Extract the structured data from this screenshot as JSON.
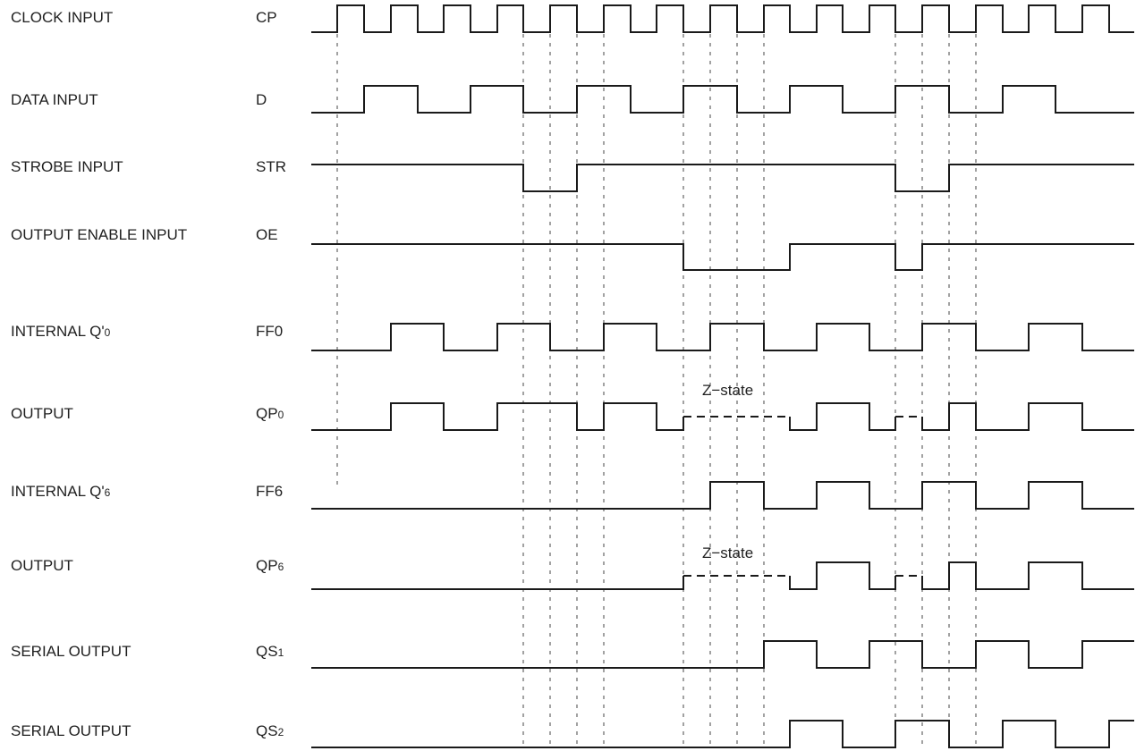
{
  "signals": [
    {
      "id": "cp",
      "name": "CLOCK INPUT",
      "sym": "CP",
      "sub": ""
    },
    {
      "id": "d",
      "name": "DATA INPUT",
      "sym": "D",
      "sub": ""
    },
    {
      "id": "str",
      "name": "STROBE INPUT",
      "sym": "STR",
      "sub": ""
    },
    {
      "id": "oe",
      "name": "OUTPUT ENABLE INPUT",
      "sym": "OE",
      "sub": ""
    },
    {
      "id": "ff0",
      "name": "INTERNAL Q'",
      "name_sub": "0",
      "sym": "FF0",
      "sub": ""
    },
    {
      "id": "qp0",
      "name": "OUTPUT",
      "sym": "QP",
      "sub": "0"
    },
    {
      "id": "ff6",
      "name": "INTERNAL Q'",
      "name_sub": "6",
      "sym": "FF6",
      "sub": ""
    },
    {
      "id": "qp6",
      "name": "OUTPUT",
      "sym": "QP",
      "sub": "6"
    },
    {
      "id": "qs1",
      "name": "SERIAL OUTPUT",
      "sym": "QS",
      "sub": "1"
    },
    {
      "id": "qs2",
      "name": "SERIAL OUTPUT",
      "sym": "QS",
      "sub": "2"
    }
  ],
  "annotations": {
    "z_state_qp0": "Z−state",
    "z_state_qp6": "Z−state"
  }
}
